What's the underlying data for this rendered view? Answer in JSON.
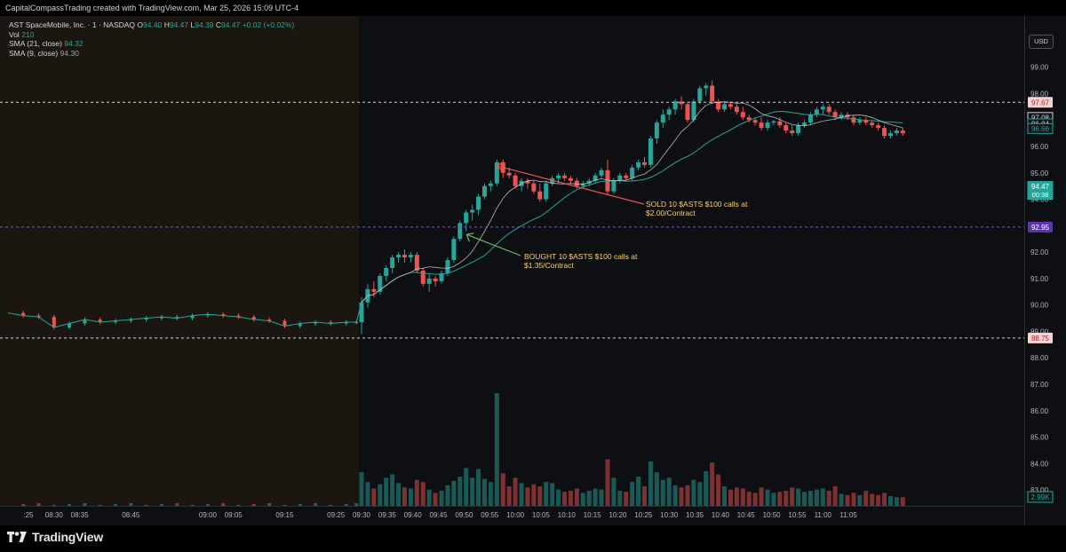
{
  "header": {
    "attribution": "CapitalCompassTrading created with TradingView.com, Mar 25, 2026 15:09 UTC-4"
  },
  "legend": {
    "symbol": "AST SpaceMobile, Inc. · 1 · NASDAQ",
    "o_label": "O",
    "o_value": "94.40",
    "h_label": "H",
    "h_value": "94.47",
    "l_label": "L",
    "l_value": "94.39",
    "c_label": "C",
    "c_value": "94.47",
    "change": "+0.02 (+0.02%)",
    "vol_label": "Vol",
    "vol_value": "210",
    "sma21_label": "SMA (21, close)",
    "sma21_value": "94.32",
    "sma9_label": "SMA (9, close)",
    "sma9_value": "94.30"
  },
  "currency_button": "USD",
  "colors": {
    "up": "#26a69a",
    "down": "#ef5350",
    "premarket_bg": "#1c1610",
    "sma9": "#d1d4dc",
    "sma21": "#26a69a",
    "annotation_text": "#ffd166",
    "sold_arrow": "#ef5350",
    "bought_arrow": "#66bb6a"
  },
  "chart_data": {
    "type": "candlestick",
    "ylim": [
      82.4,
      100.6
    ],
    "y_ticks": [
      "100.00",
      "99.00",
      "98.00",
      "97.00",
      "96.00",
      "95.00",
      "94.00",
      "93.00",
      "92.00",
      "91.00",
      "90.00",
      "89.00",
      "88.00",
      "87.00",
      "86.00",
      "85.00",
      "84.00",
      "83.00"
    ],
    "x_ticks": [
      {
        "label": ":25",
        "minute": -65
      },
      {
        "label": "08:30",
        "minute": -60
      },
      {
        "label": "08:35",
        "minute": -55
      },
      {
        "label": "08:45",
        "minute": -45
      },
      {
        "label": "09:00",
        "minute": -30
      },
      {
        "label": "09:05",
        "minute": -25
      },
      {
        "label": "09:15",
        "minute": -15
      },
      {
        "label": "09:25",
        "minute": -5
      },
      {
        "label": "09:30",
        "minute": 0
      },
      {
        "label": "09:35",
        "minute": 5
      },
      {
        "label": "09:40",
        "minute": 10
      },
      {
        "label": "09:45",
        "minute": 15
      },
      {
        "label": "09:50",
        "minute": 20
      },
      {
        "label": "09:55",
        "minute": 25
      },
      {
        "label": "10:00",
        "minute": 30
      },
      {
        "label": "10:05",
        "minute": 35
      },
      {
        "label": "10:10",
        "minute": 40
      },
      {
        "label": "10:15",
        "minute": 45
      },
      {
        "label": "10:20",
        "minute": 50
      },
      {
        "label": "10:25",
        "minute": 55
      },
      {
        "label": "10:30",
        "minute": 60
      },
      {
        "label": "10:35",
        "minute": 65
      },
      {
        "label": "10:40",
        "minute": 70
      },
      {
        "label": "10:45",
        "minute": 75
      },
      {
        "label": "10:50",
        "minute": 80
      },
      {
        "label": "10:55",
        "minute": 85
      },
      {
        "label": "11:00",
        "minute": 90
      },
      {
        "label": "11:05",
        "minute": 95
      }
    ],
    "premarket": {
      "open": 89.7,
      "close": 89.35,
      "points": [
        [
          -69,
          89.7
        ],
        [
          -66,
          89.6
        ],
        [
          -63,
          89.55
        ],
        [
          -60,
          89.15
        ],
        [
          -57,
          89.3
        ],
        [
          -54,
          89.45
        ],
        [
          -51,
          89.35
        ],
        [
          -48,
          89.4
        ],
        [
          -45,
          89.45
        ],
        [
          -42,
          89.5
        ],
        [
          -39,
          89.55
        ],
        [
          -36,
          89.5
        ],
        [
          -33,
          89.6
        ],
        [
          -30,
          89.65
        ],
        [
          -27,
          89.6
        ],
        [
          -24,
          89.55
        ],
        [
          -21,
          89.45
        ],
        [
          -18,
          89.4
        ],
        [
          -15,
          89.2
        ],
        [
          -12,
          89.3
        ],
        [
          -9,
          89.35
        ],
        [
          -6,
          89.3
        ],
        [
          -3,
          89.35
        ],
        [
          -1,
          89.35
        ]
      ]
    },
    "candles": [
      [
        89.35,
        90.3,
        88.9,
        90.1,
        3.1
      ],
      [
        90.1,
        90.8,
        89.9,
        90.6,
        2.2
      ],
      [
        90.6,
        90.9,
        90.3,
        90.5,
        1.6
      ],
      [
        90.5,
        91.2,
        90.4,
        91.1,
        2.0
      ],
      [
        91.1,
        91.5,
        90.9,
        91.4,
        2.6
      ],
      [
        91.4,
        91.9,
        91.2,
        91.8,
        2.9
      ],
      [
        91.8,
        92.0,
        91.6,
        91.9,
        2.1
      ],
      [
        91.9,
        92.1,
        91.6,
        91.8,
        1.7
      ],
      [
        91.8,
        92.0,
        91.6,
        91.9,
        1.6
      ],
      [
        91.9,
        92.0,
        91.2,
        91.3,
        2.4
      ],
      [
        91.3,
        91.4,
        90.7,
        90.8,
        2.2
      ],
      [
        90.8,
        91.2,
        90.5,
        91.0,
        1.5
      ],
      [
        91.0,
        91.1,
        90.7,
        90.9,
        1.2
      ],
      [
        90.9,
        91.3,
        90.8,
        91.2,
        1.4
      ],
      [
        91.2,
        91.8,
        91.1,
        91.7,
        1.9
      ],
      [
        91.7,
        92.6,
        91.6,
        92.5,
        2.3
      ],
      [
        92.5,
        93.2,
        92.4,
        93.1,
        2.7
      ],
      [
        93.1,
        93.6,
        92.8,
        93.5,
        3.5
      ],
      [
        93.5,
        93.8,
        93.2,
        93.6,
        2.6
      ],
      [
        93.6,
        94.2,
        93.4,
        94.1,
        3.4
      ],
      [
        94.1,
        94.6,
        94.0,
        94.5,
        2.5
      ],
      [
        94.5,
        94.7,
        94.3,
        94.6,
        2.2
      ],
      [
        94.6,
        95.5,
        94.5,
        95.4,
        10.4
      ],
      [
        95.4,
        95.5,
        94.8,
        95.0,
        3.0
      ],
      [
        95.0,
        95.2,
        94.8,
        94.9,
        1.8
      ],
      [
        94.9,
        95.0,
        94.4,
        94.5,
        2.6
      ],
      [
        94.5,
        94.8,
        94.3,
        94.7,
        2.1
      ],
      [
        94.7,
        94.8,
        94.4,
        94.6,
        1.7
      ],
      [
        94.6,
        94.7,
        94.2,
        94.3,
        2.0
      ],
      [
        94.3,
        94.6,
        93.9,
        94.0,
        1.8
      ],
      [
        94.0,
        94.7,
        93.9,
        94.6,
        2.2
      ],
      [
        94.6,
        94.9,
        94.5,
        94.8,
        2.1
      ],
      [
        94.8,
        95.0,
        94.6,
        94.9,
        1.5
      ],
      [
        94.9,
        95.0,
        94.7,
        94.8,
        1.3
      ],
      [
        94.8,
        94.9,
        94.6,
        94.7,
        1.4
      ],
      [
        94.7,
        94.8,
        94.4,
        94.5,
        1.6
      ],
      [
        94.5,
        94.7,
        94.4,
        94.6,
        1.2
      ],
      [
        94.6,
        94.8,
        94.5,
        94.7,
        1.4
      ],
      [
        94.7,
        95.0,
        94.6,
        94.9,
        1.6
      ],
      [
        94.9,
        95.2,
        94.8,
        95.1,
        1.5
      ],
      [
        95.1,
        95.5,
        94.2,
        94.3,
        4.3
      ],
      [
        94.3,
        94.8,
        94.2,
        94.7,
        2.6
      ],
      [
        94.7,
        95.0,
        94.6,
        94.9,
        1.4
      ],
      [
        94.9,
        95.0,
        94.7,
        94.8,
        1.3
      ],
      [
        94.8,
        95.3,
        94.7,
        95.2,
        2.2
      ],
      [
        95.2,
        95.5,
        95.1,
        95.4,
        2.7
      ],
      [
        95.4,
        95.6,
        95.2,
        95.3,
        1.8
      ],
      [
        95.3,
        96.4,
        95.2,
        96.3,
        4.1
      ],
      [
        96.3,
        97.0,
        96.1,
        96.9,
        3.1
      ],
      [
        96.9,
        97.4,
        96.7,
        97.2,
        2.4
      ],
      [
        97.2,
        97.5,
        97.0,
        97.4,
        2.6
      ],
      [
        97.4,
        97.8,
        97.2,
        97.7,
        1.9
      ],
      [
        97.7,
        97.9,
        97.4,
        97.6,
        1.7
      ],
      [
        97.6,
        97.7,
        96.9,
        97.0,
        1.9
      ],
      [
        97.0,
        97.8,
        96.9,
        97.7,
        2.4
      ],
      [
        97.7,
        98.3,
        97.6,
        98.2,
        2.2
      ],
      [
        98.2,
        98.4,
        97.9,
        98.3,
        3.2
      ],
      [
        98.3,
        98.5,
        97.6,
        97.7,
        4.0
      ],
      [
        97.7,
        97.8,
        97.3,
        97.4,
        2.9
      ],
      [
        97.4,
        97.7,
        97.3,
        97.6,
        1.8
      ],
      [
        97.6,
        97.7,
        97.4,
        97.5,
        1.5
      ],
      [
        97.5,
        97.6,
        97.2,
        97.3,
        1.7
      ],
      [
        97.3,
        97.5,
        97.0,
        97.1,
        1.6
      ],
      [
        97.1,
        97.2,
        96.9,
        97.0,
        1.3
      ],
      [
        97.0,
        97.1,
        96.8,
        96.9,
        1.2
      ],
      [
        96.9,
        97.1,
        96.6,
        96.7,
        1.7
      ],
      [
        96.7,
        97.0,
        96.6,
        96.9,
        1.5
      ],
      [
        96.9,
        97.0,
        96.8,
        96.95,
        1.2
      ],
      [
        96.95,
        97.1,
        96.7,
        96.8,
        1.3
      ],
      [
        96.8,
        96.9,
        96.5,
        96.6,
        1.4
      ],
      [
        96.6,
        96.8,
        96.4,
        96.5,
        1.7
      ],
      [
        96.5,
        96.9,
        96.4,
        96.8,
        1.6
      ],
      [
        96.8,
        97.0,
        96.7,
        96.9,
        1.3
      ],
      [
        96.9,
        97.3,
        96.8,
        97.2,
        1.4
      ],
      [
        97.2,
        97.5,
        97.1,
        97.4,
        1.5
      ],
      [
        97.4,
        97.6,
        97.2,
        97.5,
        1.6
      ],
      [
        97.5,
        97.6,
        97.2,
        97.3,
        1.4
      ],
      [
        97.3,
        97.4,
        97.0,
        97.1,
        1.8
      ],
      [
        97.1,
        97.3,
        97.0,
        97.2,
        1.1
      ],
      [
        97.2,
        97.3,
        97.0,
        97.1,
        1.0
      ],
      [
        97.1,
        97.2,
        96.8,
        96.9,
        1.2
      ],
      [
        96.9,
        97.1,
        96.8,
        97.0,
        1.0
      ],
      [
        97.0,
        97.1,
        96.8,
        96.9,
        1.4
      ],
      [
        96.9,
        97.0,
        96.7,
        96.8,
        1.1
      ],
      [
        96.8,
        96.9,
        96.6,
        96.7,
        1.0
      ],
      [
        96.7,
        96.8,
        96.3,
        96.4,
        1.2
      ],
      [
        96.4,
        96.6,
        96.3,
        96.5,
        0.9
      ],
      [
        96.5,
        96.7,
        96.4,
        96.6,
        0.8
      ],
      [
        96.6,
        96.7,
        96.4,
        96.5,
        0.8
      ]
    ],
    "horizontal_lines": [
      {
        "price": 97.67,
        "label": "97.67",
        "color": "#d1d4dc",
        "tag_bg": "#f3d5d5",
        "tag_fg": "#b71c1c"
      },
      {
        "price": 92.95,
        "label": "92.95",
        "color": "#7e57c2",
        "tag_bg": "#5e35b1",
        "tag_fg": "#ffffff"
      },
      {
        "price": 88.75,
        "label": "88.75",
        "color": "#d1d4dc",
        "tag_bg": "#f3d5d5",
        "tag_fg": "#b71c1c"
      }
    ],
    "right_tags": [
      {
        "price": 97.08,
        "label": "97.08",
        "bg": "#131417",
        "fg": "#d1d4dc",
        "border": "#d1d4dc"
      },
      {
        "price": 96.84,
        "label": "96.84",
        "bg": "#131417",
        "fg": "#d1d4dc",
        "border": "#26a69a"
      },
      {
        "price": 96.66,
        "label": "96.66",
        "bg": "#131417",
        "fg": "#26a69a",
        "border": "#26a69a"
      },
      {
        "price": 94.47,
        "label": "94.47",
        "sub": "00:38",
        "bg": "#26a69a",
        "fg": "#ffffff",
        "border": "#26a69a"
      }
    ],
    "volume_tag": "2.99K",
    "annotations": [
      {
        "label_line1": "SOLD 10 $ASTS $100 calls at",
        "label_line2": "$2.00/Contract",
        "minute": 26,
        "price": 95.2
      },
      {
        "label_line1": "BOUGHT 10 $ASTS $100 calls at",
        "label_line2": "$1.35/Contract",
        "minute": 20,
        "price": 92.7
      }
    ]
  },
  "brand": {
    "name": "TradingView"
  }
}
